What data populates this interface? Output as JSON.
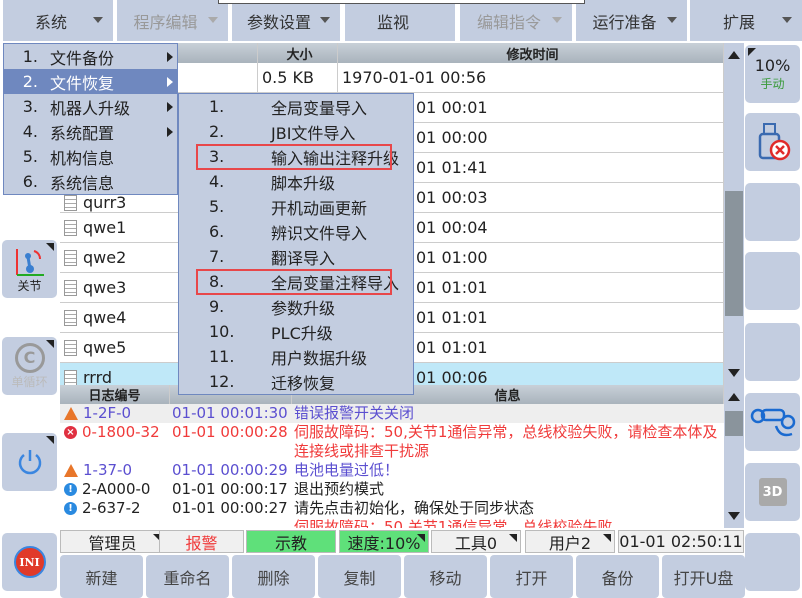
{
  "menubar": [
    {
      "label": "系统",
      "enabled": true
    },
    {
      "label": "程序编辑",
      "enabled": false
    },
    {
      "label": "参数设置",
      "enabled": true
    },
    {
      "label": "监视",
      "enabled": true,
      "arrow": false
    },
    {
      "label": "编辑指令",
      "enabled": false
    },
    {
      "label": "运行准备",
      "enabled": true
    },
    {
      "label": "扩展",
      "enabled": true
    }
  ],
  "left": {
    "joint": "关节",
    "cycle": "单循环",
    "power_icon": "power-icon",
    "ini": "INI"
  },
  "right": {
    "speed": "10%",
    "mode": "手动",
    "usb_icon": "usb-disconnected-icon",
    "robot_icon": "robot-hand-icon",
    "view3d": "3D"
  },
  "files": {
    "headers": [
      "",
      "大小",
      "修改时间"
    ],
    "rows": [
      {
        "name": "",
        "size": "0.5 KB",
        "time": "1970-01-01 00:56"
      },
      {
        "name": "",
        "size": "",
        "time": "01 00:01"
      },
      {
        "name": "",
        "size": "",
        "time": "01 00:00"
      },
      {
        "name": "",
        "size": "",
        "time": "01 01:41"
      },
      {
        "name": "qurr3",
        "size": "",
        "time": "01 00:03"
      },
      {
        "name": "qwe1",
        "size": "",
        "time": "01 00:04"
      },
      {
        "name": "qwe2",
        "size": "",
        "time": "01 01:00"
      },
      {
        "name": "qwe3",
        "size": "",
        "time": "01 01:01"
      },
      {
        "name": "qwe4",
        "size": "",
        "time": "01 01:01"
      },
      {
        "name": "qwe5",
        "size": "",
        "time": "01 01:01"
      },
      {
        "name": "rrrd",
        "size": "",
        "time": "01 00:06",
        "selected": true
      }
    ]
  },
  "log": {
    "headers": [
      "日志编号",
      "",
      "信息"
    ],
    "rows": [
      {
        "type": "warning",
        "code": "1-2F-0",
        "time": "01-01 00:01:30",
        "msg": "错误报警开关关闭",
        "color": "#5b4fd0"
      },
      {
        "type": "error",
        "code": "0-1800-32",
        "time": "01-01 00:00:28",
        "msg": "伺服故障码：50,关节1通信异常，总线校验失败，请检查本体及连接线或排查干扰源",
        "color": "#f03a3a"
      },
      {
        "type": "warning",
        "code": "1-37-0",
        "time": "01-01 00:00:29",
        "msg": "电池电量过低！",
        "color": "#5b4fd0"
      },
      {
        "type": "info",
        "code": "2-A000-0",
        "time": "01-01 00:00:17",
        "msg": "退出预约模式",
        "color": "#222"
      },
      {
        "type": "info",
        "code": "2-637-2",
        "time": "01-01 00:00:27",
        "msg": "请先点击初始化，确保处于同步状态",
        "color": "#222"
      },
      {
        "type": "error",
        "code": "",
        "time": "",
        "msg": "伺服故障码：50,关节1通信异常，总线校验失败",
        "color": "#f03a3a"
      }
    ]
  },
  "status": {
    "user": "管理员",
    "alarm": "报警",
    "mode": "示教",
    "speed": "速度:10%",
    "tool": "工具0",
    "userframe": "用户2",
    "clock": "01-01 02:50:11"
  },
  "bottom": [
    "新建",
    "重命名",
    "删除",
    "复制",
    "移动",
    "打开",
    "备份",
    "打开U盘"
  ],
  "menu": {
    "items": [
      {
        "n": "1.",
        "label": "文件备份",
        "sub": true
      },
      {
        "n": "2.",
        "label": "文件恢复",
        "sub": true,
        "active": true
      },
      {
        "n": "3.",
        "label": "机器人升级",
        "sub": true
      },
      {
        "n": "4.",
        "label": "系统配置",
        "sub": true
      },
      {
        "n": "5.",
        "label": "机构信息"
      },
      {
        "n": "6.",
        "label": "系统信息"
      }
    ]
  },
  "submenu": {
    "items": [
      {
        "n": "1.",
        "label": "全局变量导入"
      },
      {
        "n": "2.",
        "label": "JBI文件导入"
      },
      {
        "n": "3.",
        "label": "输入输出注释升级",
        "highlighted": true
      },
      {
        "n": "4.",
        "label": "脚本升级"
      },
      {
        "n": "5.",
        "label": "开机动画更新"
      },
      {
        "n": "6.",
        "label": "辨识文件导入"
      },
      {
        "n": "7.",
        "label": "翻译导入"
      },
      {
        "n": "8.",
        "label": "全局变量注释导入",
        "highlighted": true
      },
      {
        "n": "9.",
        "label": "参数升级"
      },
      {
        "n": "10.",
        "label": "PLC升级"
      },
      {
        "n": "11.",
        "label": "用户数据升级"
      },
      {
        "n": "12.",
        "label": "迁移恢复"
      }
    ]
  }
}
